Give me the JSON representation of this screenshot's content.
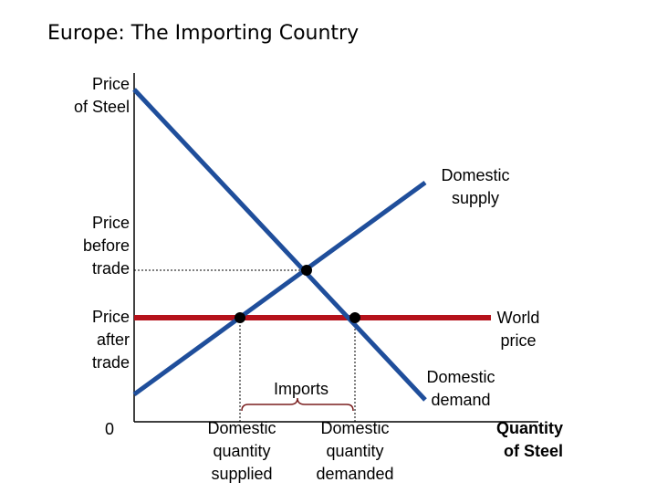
{
  "title": "Europe: The Importing Country",
  "axes": {
    "y_label_line1": "Price",
    "y_label_line2": "of Steel",
    "x_label_line1": "Quantity",
    "x_label_line2": "of Steel",
    "origin": "0"
  },
  "price_labels": {
    "before_line1": "Price",
    "before_line2": "before",
    "before_line3": "trade",
    "after_line1": "Price",
    "after_line2": "after",
    "after_line3": "trade"
  },
  "curves": {
    "supply_line1": "Domestic",
    "supply_line2": "supply",
    "demand_line1": "Domestic",
    "demand_line2": "demand",
    "world_line1": "World",
    "world_line2": "price"
  },
  "quantities": {
    "supplied_line1": "Domestic",
    "supplied_line2": "quantity",
    "supplied_line3": "supplied",
    "demanded_line1": "Domestic",
    "demanded_line2": "quantity",
    "demanded_line3": "demanded",
    "imports": "Imports"
  },
  "colors": {
    "curve": "#1f4e9b",
    "world_price": "#b5121b",
    "axis": "#000000"
  }
}
